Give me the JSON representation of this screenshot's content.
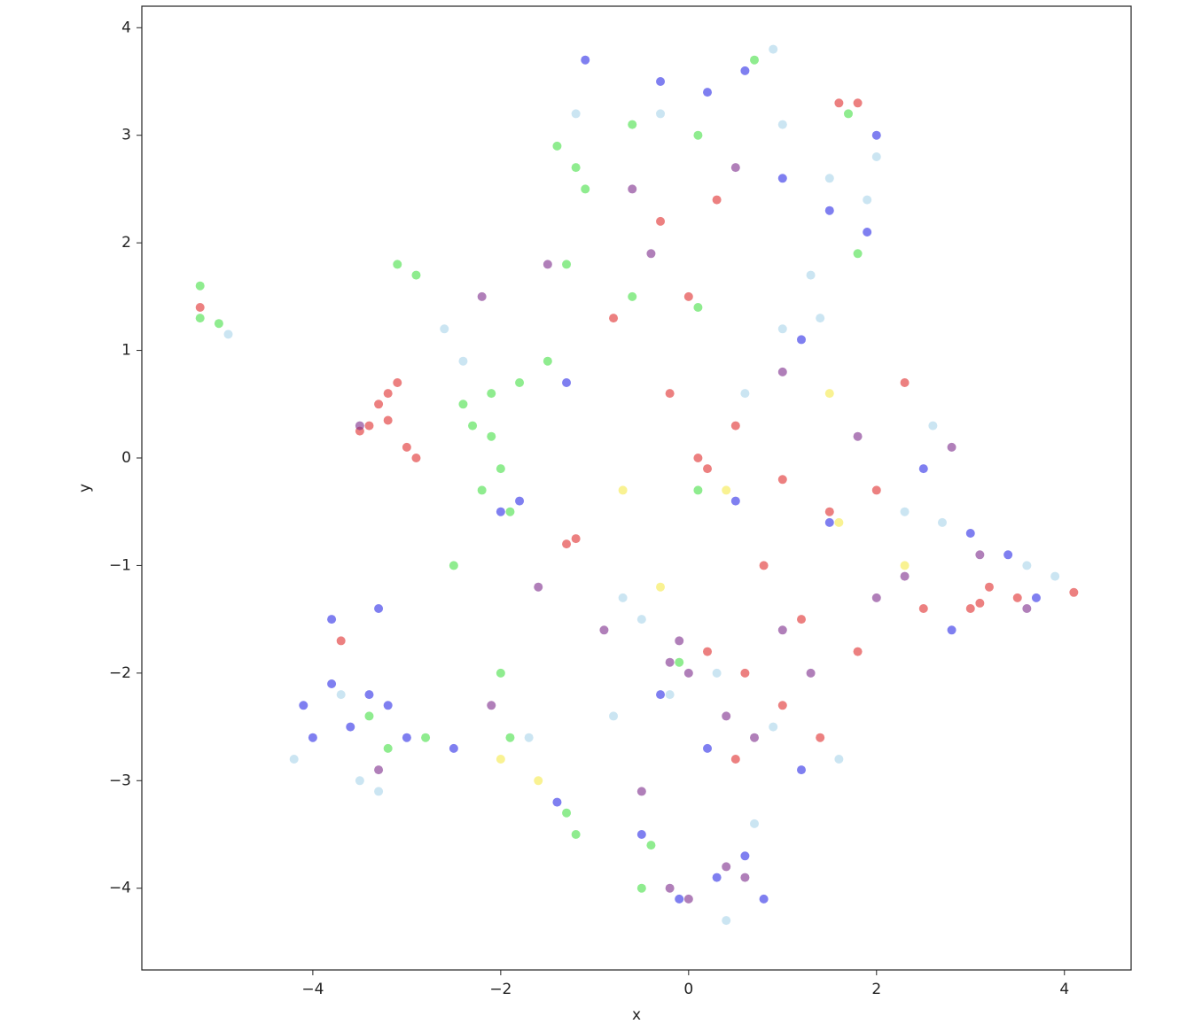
{
  "chart_data": {
    "type": "scatter",
    "x_label": "x",
    "y_label": "y",
    "xlim": [
      -5.82,
      4.71
    ],
    "ylim": [
      -4.76,
      4.2
    ],
    "xticks": [
      {
        "value": -4,
        "label": "−4"
      },
      {
        "value": -2,
        "label": "−2"
      },
      0,
      2,
      4
    ],
    "yticks": [
      {
        "value": -4,
        "label": "−4"
      },
      {
        "value": -3,
        "label": "−3"
      },
      {
        "value": -2,
        "label": "−2"
      },
      {
        "value": -1,
        "label": "−1"
      },
      0,
      1,
      2,
      3,
      4
    ],
    "series": [
      {
        "color": "#e02b2b",
        "x": [
          -3.3,
          -3.2,
          -3.1,
          -3.4,
          -3.0,
          -2.9,
          -3.5,
          -3.2,
          -5.2,
          0.1,
          0.2,
          -1.3,
          -1.2,
          3.0,
          3.1,
          3.5,
          3.2,
          2.5,
          4.1,
          0.5,
          1.0,
          1.5,
          2.0,
          0.8,
          1.2,
          0.2,
          0.6,
          1.0,
          1.4,
          0.5,
          -0.3,
          0.0,
          0.3,
          1.6,
          1.8,
          -0.8,
          2.3,
          1.8,
          -3.7,
          -0.2
        ],
        "y": [
          0.5,
          0.6,
          0.7,
          0.3,
          0.1,
          0.0,
          0.25,
          0.35,
          1.4,
          0.0,
          -0.1,
          -0.8,
          -0.75,
          -1.4,
          -1.35,
          -1.3,
          -1.2,
          -1.4,
          -1.25,
          0.3,
          -0.2,
          -0.5,
          -0.3,
          -1.0,
          -1.5,
          -1.8,
          -2.0,
          -2.3,
          -2.6,
          -2.8,
          2.2,
          1.5,
          2.4,
          3.3,
          3.3,
          1.3,
          0.7,
          -1.8,
          -1.7,
          0.6
        ]
      },
      {
        "color": "#2a2ae6",
        "x": [
          -4.1,
          -4.0,
          -3.8,
          -3.6,
          -3.4,
          -3.2,
          -3.0,
          -3.8,
          -3.3,
          -2.5,
          -1.1,
          -0.3,
          0.2,
          0.6,
          1.0,
          1.5,
          1.9,
          2.0,
          1.2,
          -1.3,
          0.5,
          1.5,
          2.5,
          3.0,
          3.4,
          3.7,
          2.8,
          -0.1,
          0.3,
          0.6,
          0.8,
          -1.4,
          -0.5,
          0.2,
          -0.3,
          1.2,
          -2.0,
          -1.8
        ],
        "y": [
          -2.3,
          -2.6,
          -2.1,
          -2.5,
          -2.2,
          -2.3,
          -2.6,
          -1.5,
          -1.4,
          -2.7,
          3.7,
          3.5,
          3.4,
          3.6,
          2.6,
          2.3,
          2.1,
          3.0,
          1.1,
          0.7,
          -0.4,
          -0.6,
          -0.1,
          -0.7,
          -0.9,
          -1.3,
          -1.6,
          -4.1,
          -3.9,
          -3.7,
          -4.1,
          -3.2,
          -3.5,
          -2.7,
          -2.2,
          -2.9,
          -0.5,
          -0.4
        ]
      },
      {
        "color": "#7b2a8a",
        "x": [
          -0.2,
          -0.1,
          0.0,
          0.4,
          0.7,
          1.0,
          1.3,
          0.4,
          0.6,
          -0.2,
          0.0,
          2.8,
          3.1,
          3.6,
          2.3,
          -0.6,
          -0.4,
          0.5,
          -1.5,
          -2.2,
          -3.5,
          -3.3,
          -2.1,
          -1.6,
          -0.9,
          1.8,
          1.0,
          2.0,
          -0.5
        ],
        "y": [
          -1.9,
          -1.7,
          -2.0,
          -2.4,
          -2.6,
          -1.6,
          -2.0,
          -3.8,
          -3.9,
          -4.0,
          -4.1,
          0.1,
          -0.9,
          -1.4,
          -1.1,
          2.5,
          1.9,
          2.7,
          1.8,
          1.5,
          0.3,
          -2.9,
          -2.3,
          -1.2,
          -1.6,
          0.2,
          0.8,
          -1.3,
          -3.1
        ]
      },
      {
        "color": "#44e044",
        "x": [
          -5.2,
          -5.2,
          -5.0,
          -3.1,
          -2.9,
          -2.4,
          -2.3,
          -2.1,
          -2.0,
          -2.2,
          -2.5,
          -1.9,
          -2.1,
          -1.8,
          -1.5,
          -1.2,
          -1.4,
          -1.1,
          -0.6,
          0.1,
          0.7,
          1.7,
          -0.6,
          0.1,
          -1.3,
          -3.4,
          -3.2,
          -2.8,
          -2.0,
          -1.9,
          -1.3,
          -1.2,
          -0.4,
          -0.5,
          -0.1,
          0.1,
          1.8
        ],
        "y": [
          1.6,
          1.3,
          1.25,
          1.8,
          1.7,
          0.5,
          0.3,
          0.2,
          -0.1,
          -0.3,
          -1.0,
          -0.5,
          0.6,
          0.7,
          0.9,
          2.7,
          2.9,
          2.5,
          3.1,
          3.0,
          3.7,
          3.2,
          1.5,
          1.4,
          1.8,
          -2.4,
          -2.7,
          -2.6,
          -2.0,
          -2.6,
          -3.3,
          -3.5,
          -3.6,
          -4.0,
          -1.9,
          -0.3,
          1.9
        ]
      },
      {
        "color": "#a8d4ea",
        "x": [
          -4.9,
          -4.2,
          -3.5,
          -3.7,
          -2.6,
          -2.4,
          -1.7,
          -0.7,
          -0.5,
          -0.2,
          0.3,
          0.9,
          1.6,
          0.4,
          0.7,
          0.9,
          1.0,
          1.5,
          1.9,
          2.0,
          1.3,
          1.0,
          0.6,
          2.3,
          2.7,
          3.6,
          3.9,
          2.6,
          -0.3,
          -1.2,
          -3.3,
          -0.8,
          1.4
        ],
        "y": [
          1.15,
          -2.8,
          -3.0,
          -2.2,
          1.2,
          0.9,
          -2.6,
          -1.3,
          -1.5,
          -2.2,
          -2.0,
          -2.5,
          -2.8,
          -4.3,
          -3.4,
          3.8,
          3.1,
          2.6,
          2.4,
          2.8,
          1.7,
          1.2,
          0.6,
          -0.5,
          -0.6,
          -1.0,
          -1.1,
          0.3,
          3.2,
          3.2,
          -3.1,
          -2.4,
          1.3
        ]
      },
      {
        "color": "#f5e94a",
        "x": [
          -0.7,
          0.4,
          1.6,
          -0.3,
          2.3,
          -2.0,
          -1.6,
          1.5
        ],
        "y": [
          -0.3,
          -0.3,
          -0.6,
          -1.2,
          -1.0,
          -2.8,
          -3.0,
          0.6
        ]
      }
    ]
  }
}
